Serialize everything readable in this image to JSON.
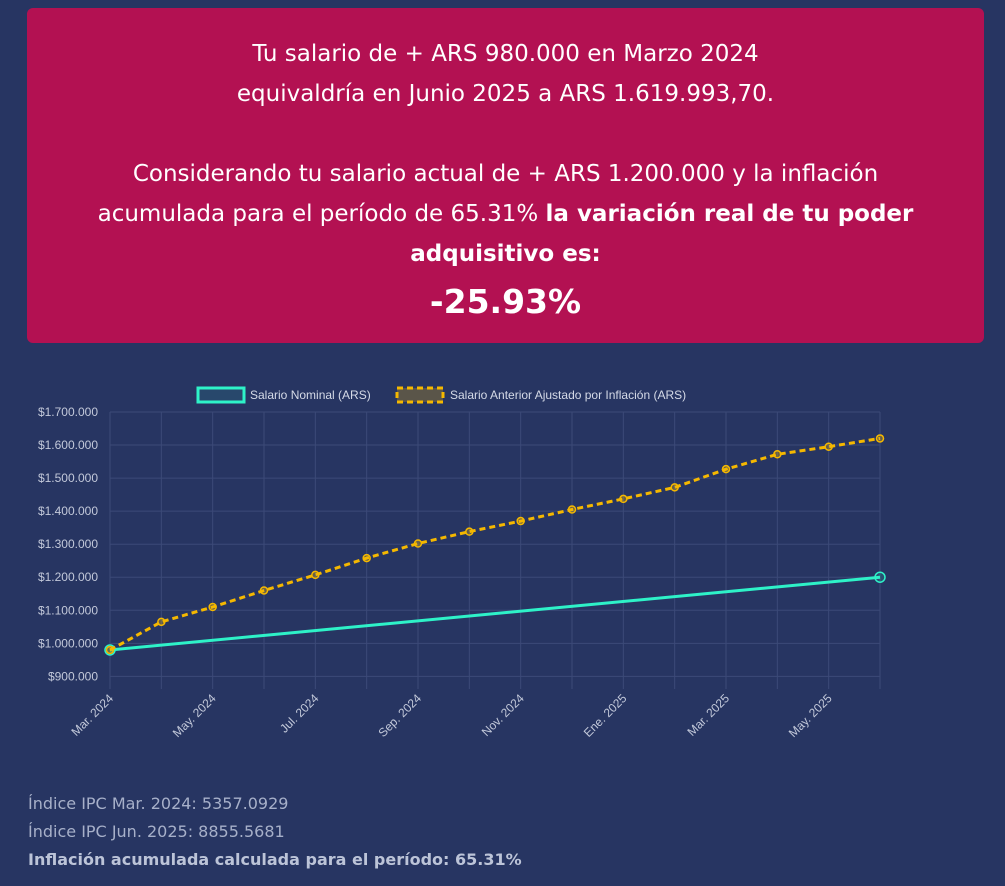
{
  "result": {
    "line1": "Tu salario de + ARS 980.000 en Marzo 2024",
    "line2": "equivaldría en Junio 2025 a ARS 1.619.993,70.",
    "line3": "Considerando tu salario actual de + ARS 1.200.000 y la inflación",
    "line4_normal": "acumulada para el período de 65.31% ",
    "line4_bold": "la variación real de tu poder",
    "line5_bold": "adquisitivo es:",
    "variation": "-25.93%"
  },
  "chart_data": {
    "type": "line",
    "x": [
      "Mar. 2024",
      "Abr. 2024",
      "May. 2024",
      "Jun. 2024",
      "Jul. 2024",
      "Ago. 2024",
      "Sep. 2024",
      "Oct. 2024",
      "Nov. 2024",
      "Dic. 2024",
      "Ene. 2025",
      "Feb. 2025",
      "Mar. 2025",
      "Abr. 2025",
      "May. 2025",
      "Jun. 2025"
    ],
    "x_tick_labels": [
      "Mar. 2024",
      "May. 2024",
      "Jul. 2024",
      "Sep. 2024",
      "Nov. 2024",
      "Ene. 2025",
      "Mar. 2025",
      "May. 2025"
    ],
    "series": [
      {
        "name": "Salario Nominal (ARS)",
        "color": "#2ef2c8",
        "style": "solid",
        "values": [
          980000,
          null,
          null,
          null,
          null,
          null,
          null,
          null,
          null,
          null,
          null,
          null,
          null,
          null,
          null,
          1200000
        ]
      },
      {
        "name": "Salario Anterior Ajustado por Inflación (ARS)",
        "color": "#f5b800",
        "style": "dashed",
        "values": [
          980000,
          1065000,
          1110000,
          1160000,
          1207000,
          1258000,
          1302000,
          1338000,
          1370000,
          1405000,
          1437000,
          1472000,
          1527000,
          1572000,
          1595000,
          1619994
        ]
      }
    ],
    "y_tick_labels": [
      "$1.700.000",
      "$1.600.000",
      "$1.500.000",
      "$1.400.000",
      "$1.300.000",
      "$1.200.000",
      "$1.100.000",
      "$1.000.000",
      "$900.000"
    ],
    "ylim": [
      880000,
      1700000
    ],
    "grid": true,
    "legend_position": "top-center"
  },
  "footer": {
    "ipc_start": "Índice IPC Mar. 2024: 5357.0929",
    "ipc_end": "Índice IPC Jun. 2025: 8855.5681",
    "inflation": "Inflación acumulada calculada para el período: 65.31%"
  }
}
